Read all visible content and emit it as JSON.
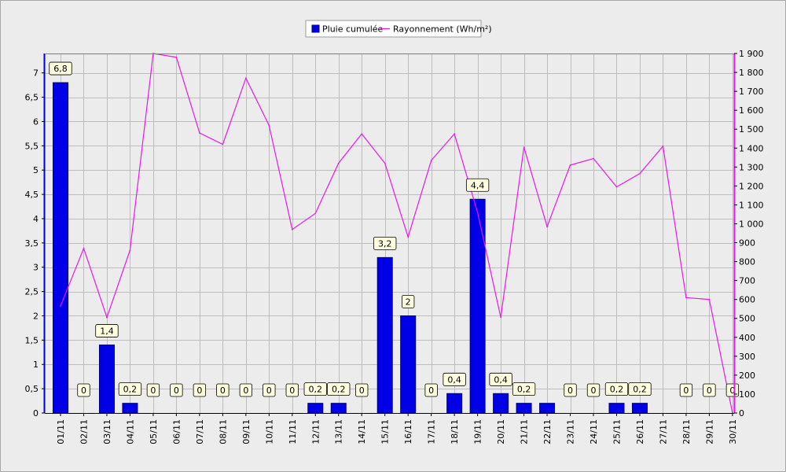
{
  "chart_data": {
    "type": "bar",
    "categories": [
      "01/11",
      "02/11",
      "03/11",
      "04/11",
      "05/11",
      "06/11",
      "07/11",
      "08/11",
      "09/11",
      "10/11",
      "11/11",
      "12/11",
      "13/11",
      "14/11",
      "15/11",
      "16/11",
      "17/11",
      "18/11",
      "19/11",
      "20/11",
      "21/11",
      "22/11",
      "23/11",
      "24/11",
      "25/11",
      "26/11",
      "27/11",
      "28/11",
      "29/11",
      "30/11"
    ],
    "series": [
      {
        "name": "Pluie cumulée",
        "type": "bar",
        "axis": "left",
        "color": "#0000e6",
        "values": [
          6.8,
          0,
          1.4,
          0.2,
          0,
          0,
          0,
          0,
          0,
          0,
          0,
          0.2,
          0.2,
          0,
          3.2,
          2,
          0,
          0.4,
          4.4,
          0.4,
          0.2,
          0.2,
          0,
          0,
          0.2,
          0.2,
          0,
          0,
          0,
          0
        ],
        "labels": [
          "6,8",
          "0",
          "1,4",
          "0,2",
          "0",
          "0",
          "0",
          "0",
          "0",
          "0",
          "0",
          "0,2",
          "0,2",
          "0",
          "3,2",
          "2",
          "0",
          "0,4",
          "4,4",
          "0,4",
          "0,2",
          null,
          "0",
          "0",
          "0,2",
          "0,2",
          null,
          "0",
          "0",
          "0"
        ]
      },
      {
        "name": "Rayonnement (Wh/m²)",
        "type": "line",
        "axis": "right",
        "color": "#e619e6",
        "values": [
          565,
          870,
          505,
          860,
          1900,
          1880,
          1480,
          1420,
          1770,
          1520,
          970,
          1055,
          1320,
          1475,
          1320,
          930,
          1335,
          1475,
          1060,
          505,
          1405,
          985,
          1310,
          1345,
          1195,
          1265,
          1410,
          610,
          600,
          0
        ]
      }
    ],
    "ylim_left": [
      0,
      7.4
    ],
    "yticks_left": [
      {
        "v": 0,
        "t": "0"
      },
      {
        "v": 0.5,
        "t": "0,5"
      },
      {
        "v": 1,
        "t": "1"
      },
      {
        "v": 1.5,
        "t": "1,5"
      },
      {
        "v": 2,
        "t": "2"
      },
      {
        "v": 2.5,
        "t": "2,5"
      },
      {
        "v": 3,
        "t": "3"
      },
      {
        "v": 3.5,
        "t": "3,5"
      },
      {
        "v": 4,
        "t": "4"
      },
      {
        "v": 4.5,
        "t": "4,5"
      },
      {
        "v": 5,
        "t": "5"
      },
      {
        "v": 5.5,
        "t": "5,5"
      },
      {
        "v": 6,
        "t": "6"
      },
      {
        "v": 6.5,
        "t": "6,5"
      },
      {
        "v": 7,
        "t": "7"
      }
    ],
    "ylim_right": [
      0,
      1900
    ],
    "yticks_right": [
      {
        "v": 0,
        "t": "0"
      },
      {
        "v": 100,
        "t": "100"
      },
      {
        "v": 200,
        "t": "200"
      },
      {
        "v": 300,
        "t": "300"
      },
      {
        "v": 400,
        "t": "400"
      },
      {
        "v": 500,
        "t": "500"
      },
      {
        "v": 600,
        "t": "600"
      },
      {
        "v": 700,
        "t": "700"
      },
      {
        "v": 800,
        "t": "800"
      },
      {
        "v": 900,
        "t": "900"
      },
      {
        "v": 1000,
        "t": "1 000"
      },
      {
        "v": 1100,
        "t": "1 100"
      },
      {
        "v": 1200,
        "t": "1 200"
      },
      {
        "v": 1300,
        "t": "1 300"
      },
      {
        "v": 1400,
        "t": "1 400"
      },
      {
        "v": 1500,
        "t": "1 500"
      },
      {
        "v": 1600,
        "t": "1 600"
      },
      {
        "v": 1700,
        "t": "1 700"
      },
      {
        "v": 1800,
        "t": "1 800"
      },
      {
        "v": 1900,
        "t": "1 900"
      }
    ],
    "grid": true,
    "legend_position": "top-center",
    "colors": {
      "left_axis": "#0000e6",
      "right_axis": "#e619e6",
      "plot_background": "#ececec",
      "grid": "#bdbdbd",
      "label_background": "#ffffe0"
    }
  }
}
